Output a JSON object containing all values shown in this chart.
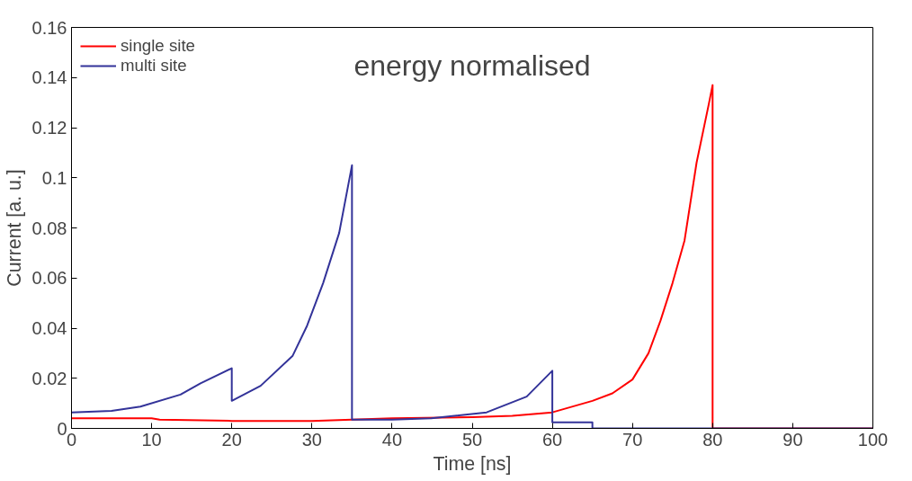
{
  "chart_data": {
    "type": "line",
    "title": "energy normalised",
    "xlabel": "Time [ns]",
    "ylabel": "Current [a. u.]",
    "xlim": [
      0,
      100
    ],
    "xticks": [
      0,
      10,
      20,
      30,
      40,
      50,
      60,
      70,
      80,
      90,
      100
    ],
    "ylim": [
      0,
      0.16
    ],
    "yticks": [
      0,
      0.02,
      0.04,
      0.06,
      0.08,
      0.1,
      0.12,
      0.14,
      0.16
    ],
    "grid": false,
    "legend": "top left",
    "marker": "none",
    "line_style": "solid",
    "series": [
      {
        "name": "single site",
        "color": "#ff0000",
        "x": [
          0,
          10,
          11,
          20,
          30,
          35,
          40,
          50,
          55,
          60,
          65,
          67.5,
          70,
          72,
          73.5,
          75,
          76.5,
          78,
          79.5,
          80,
          80,
          100
        ],
        "values": [
          0.004,
          0.004,
          0.0035,
          0.003,
          0.003,
          0.0035,
          0.004,
          0.0045,
          0.005,
          0.0064,
          0.011,
          0.014,
          0.0195,
          0.03,
          0.043,
          0.058,
          0.075,
          0.106,
          0.129,
          0.137,
          0,
          0
        ]
      },
      {
        "name": "multi site",
        "color": "#333399",
        "x": [
          0,
          5,
          8.6,
          13.6,
          16.1,
          20,
          20,
          23.6,
          27.6,
          29.4,
          31.4,
          33.4,
          35,
          35,
          40,
          44.9,
          51.8,
          56.8,
          60,
          60,
          65,
          65,
          100
        ],
        "values": [
          0.0064,
          0.007,
          0.0087,
          0.0135,
          0.018,
          0.024,
          0.011,
          0.017,
          0.029,
          0.041,
          0.058,
          0.078,
          0.105,
          0.0035,
          0.0035,
          0.004,
          0.0064,
          0.0127,
          0.023,
          0.0024,
          0.0024,
          0,
          0
        ]
      }
    ]
  }
}
